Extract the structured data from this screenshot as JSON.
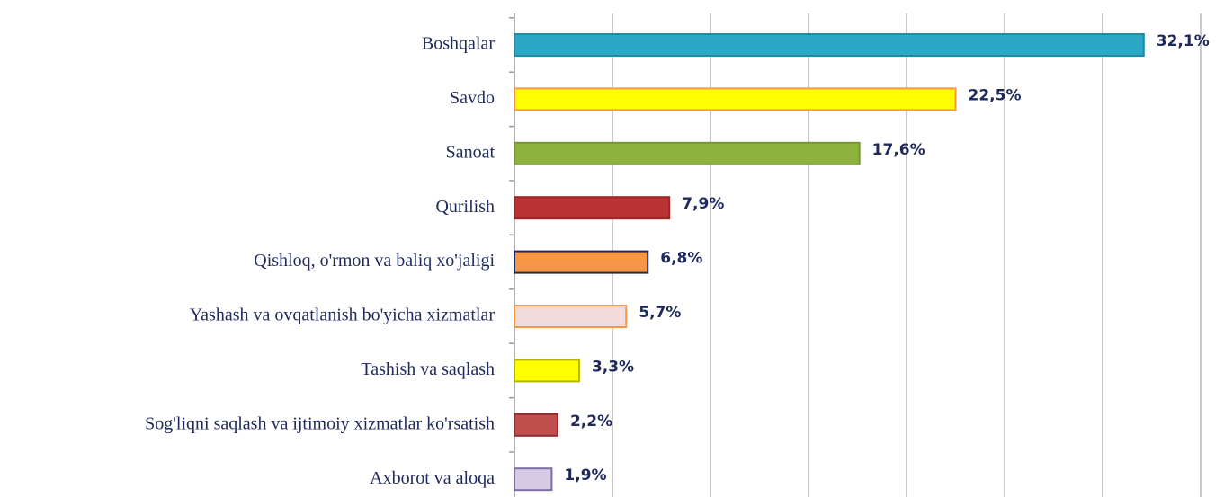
{
  "chart_data": {
    "type": "barh",
    "categories": [
      "Boshqalar",
      "Savdo",
      "Sanoat",
      "Qurilish",
      "Qishloq, o'rmon va baliq xo'jaligi",
      "Yashash va ovqatlanish bo'yicha xizmatlar",
      "Tashish va saqlash",
      "Sog'liqni  saqlash va ijtimoiy xizmatlar ko'rsatish",
      "Axborot va aloqa"
    ],
    "values": [
      32.1,
      22.5,
      17.6,
      7.9,
      6.8,
      5.7,
      3.3,
      2.2,
      1.9
    ],
    "value_labels": [
      "32,1%",
      "22,5%",
      "17,6%",
      "7,9%",
      "6,8%",
      "5,7%",
      "3,3%",
      "2,2%",
      "1,9%"
    ],
    "colors": [
      "#2ea6c6",
      "#ffff00",
      "#8db33e",
      "#b93333",
      "#f79646",
      "#f2dcdb",
      "#ffff00",
      "#c0504d",
      "#d5cbe6"
    ],
    "edgecolors": [
      "#1d8aa6",
      "#f79646",
      "#76982f",
      "#9a2626",
      "#1f2a5c",
      "#f79646",
      "#b5b500",
      "#8f2e2c",
      "#7f6fa0"
    ],
    "xlim": [
      0,
      35
    ],
    "xticks": [
      0,
      5,
      10,
      15,
      20,
      25,
      30,
      35
    ],
    "grid": true
  }
}
